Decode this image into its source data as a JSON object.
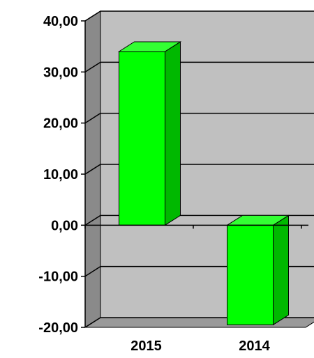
{
  "chart_data": {
    "type": "bar",
    "style": "3d-column",
    "categories": [
      "2015",
      "2014"
    ],
    "series": [
      {
        "values": [
          34.0,
          -19.5
        ]
      }
    ],
    "ylim": [
      -20,
      40
    ],
    "yticks": [
      40,
      30,
      20,
      10,
      0,
      -10,
      -20
    ],
    "ytick_labels": [
      "40,00",
      "30,00",
      "20,00",
      "10,00",
      "0,00",
      "-10,00",
      "-20,00"
    ],
    "grid": true,
    "legend": "none",
    "title": "",
    "xlabel": "",
    "ylabel": ""
  },
  "colors": {
    "bar_front": "#00ff00",
    "bar_top": "#33ff33",
    "bar_side": "#00b800",
    "back_wall": "#c0c0c0",
    "side_wall": "#8a8a8a",
    "floor": "#9a9a9a",
    "gridline": "#000000"
  }
}
